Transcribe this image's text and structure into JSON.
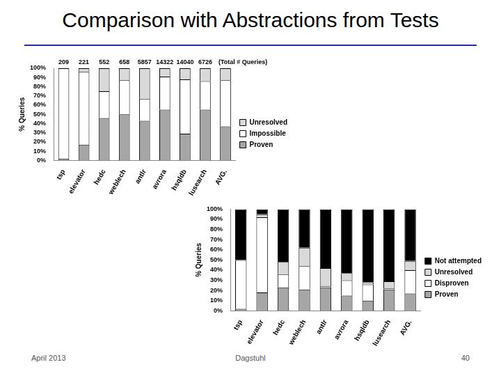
{
  "title": "Comparison with Abstractions from Tests",
  "footer": {
    "left": "April 2013",
    "center": "Dagstuhl",
    "right": "40"
  },
  "chart_data": [
    {
      "type": "bar",
      "stacked": true,
      "legend": "right",
      "grid": false,
      "ylabel": "% Queries",
      "categories": [
        "tsp",
        "elevator",
        "hedc",
        "weblech",
        "antlr",
        "avrora",
        "hsqldb",
        "lusearch",
        "AVG."
      ],
      "totals": [
        209,
        221,
        552,
        658,
        5857,
        14322,
        14040,
        6726,
        null
      ],
      "totals_label": "(Total # Queries)",
      "series": [
        {
          "name": "Proven",
          "color": "#a6a6a6",
          "values": [
            2,
            17,
            46,
            50,
            43,
            55,
            29,
            55,
            37
          ]
        },
        {
          "name": "Impossible",
          "color": "#ffffff",
          "values": [
            98,
            79,
            29,
            37,
            24,
            36,
            59,
            31,
            50
          ]
        },
        {
          "name": "Unresolved",
          "color": "#d9d9d9",
          "values": [
            0,
            4,
            25,
            13,
            33,
            9,
            12,
            14,
            13
          ]
        }
      ],
      "ylim": [
        0,
        100
      ],
      "yticks": [
        {
          "value": 0,
          "label": "0%"
        },
        {
          "value": 10,
          "label": "10%"
        },
        {
          "value": 20,
          "label": "20%"
        },
        {
          "value": 30,
          "label": "30%"
        },
        {
          "value": 40,
          "label": "40%"
        },
        {
          "value": 50,
          "label": "50%"
        },
        {
          "value": 60,
          "label": "60%"
        },
        {
          "value": 70,
          "label": "70%"
        },
        {
          "value": 80,
          "label": "80%"
        },
        {
          "value": 90,
          "label": "90%"
        },
        {
          "value": 100,
          "label": "100%"
        }
      ]
    },
    {
      "type": "bar",
      "stacked": true,
      "legend": "right",
      "grid": false,
      "ylabel": "% Queries",
      "categories": [
        "tsp",
        "elevator",
        "hedc",
        "weblech",
        "antlr",
        "avrora",
        "hsqldb",
        "lusearch",
        "AVG."
      ],
      "series": [
        {
          "name": "Proven",
          "color": "#a6a6a6",
          "values": [
            2,
            18,
            23,
            21,
            23,
            15,
            10,
            21,
            17
          ]
        },
        {
          "name": "Disproven",
          "color": "#ffffff",
          "values": [
            48,
            74,
            13,
            23,
            1,
            15,
            16,
            1,
            23
          ]
        },
        {
          "name": "Unresolved",
          "color": "#d9d9d9",
          "values": [
            0,
            3,
            12,
            18,
            18,
            7,
            2,
            7,
            9
          ]
        },
        {
          "name": "Not attempted",
          "color": "#000000",
          "values": [
            50,
            5,
            52,
            38,
            58,
            63,
            72,
            71,
            51
          ]
        }
      ],
      "ylim": [
        0,
        100
      ],
      "yticks": [
        {
          "value": 0,
          "label": "0%"
        },
        {
          "value": 10,
          "label": "10%"
        },
        {
          "value": 20,
          "label": "20%"
        },
        {
          "value": 30,
          "label": "30%"
        },
        {
          "value": 40,
          "label": "40%"
        },
        {
          "value": 50,
          "label": "50%"
        },
        {
          "value": 60,
          "label": "60%"
        },
        {
          "value": 70,
          "label": "70%"
        },
        {
          "value": 80,
          "label": "80%"
        },
        {
          "value": 90,
          "label": "90%"
        },
        {
          "value": 100,
          "label": "100%"
        }
      ]
    }
  ]
}
